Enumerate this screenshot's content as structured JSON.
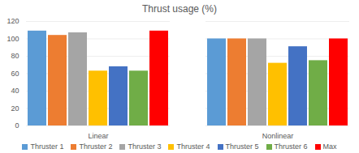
{
  "chart_data": {
    "type": "bar",
    "title": "Thrust usage (%)",
    "categories": [
      "Linear",
      "Nonlinear"
    ],
    "series": [
      {
        "name": "Thruster 1",
        "color": "#5b9bd5",
        "values": [
          109,
          100
        ]
      },
      {
        "name": "Thruster 2",
        "color": "#ed7d31",
        "values": [
          104,
          100
        ]
      },
      {
        "name": "Thruster 3",
        "color": "#a5a5a5",
        "values": [
          107,
          100
        ]
      },
      {
        "name": "Thruster 4",
        "color": "#ffc000",
        "values": [
          63,
          72
        ]
      },
      {
        "name": "Thruster 5",
        "color": "#4472c4",
        "values": [
          68,
          91
        ]
      },
      {
        "name": "Thruster 6",
        "color": "#70ad47",
        "values": [
          63,
          75
        ]
      },
      {
        "name": "Max",
        "color": "#ff0000",
        "values": [
          109,
          100
        ]
      }
    ],
    "ylim": [
      0,
      120
    ],
    "yticks": [
      0,
      20,
      40,
      60,
      80,
      100,
      120
    ],
    "grid": true,
    "legend": "bottom"
  }
}
